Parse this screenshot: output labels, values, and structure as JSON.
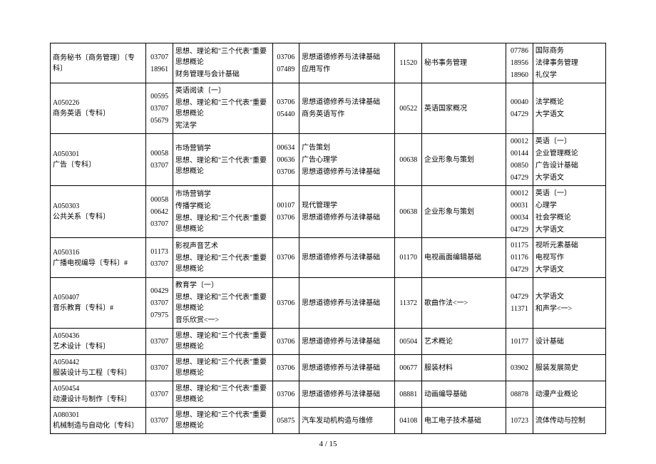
{
  "pagenum": "4 / 15",
  "rows": [
    {
      "c1": "商务秘书〔商务管理〕〔专科〕",
      "c2": [
        "03707",
        "18961"
      ],
      "c3": [
        "思想、理论和\"三个代表\"重要思想概论",
        "财务管理与会计基础"
      ],
      "c4": [
        "03706",
        "07489"
      ],
      "c5": [
        "思想道德修养与法律基础",
        "应用写作"
      ],
      "c6": [
        "11520"
      ],
      "c7": [
        "秘书事务管理"
      ],
      "c8": [
        "07786",
        "18956",
        "18960"
      ],
      "c9": [
        "国际商务",
        "法律事务管理",
        "礼仪学"
      ]
    },
    {
      "c1": "A050226\n商务英语〔专科〕",
      "c2": [
        "00595",
        "03707",
        "05679"
      ],
      "c3": [
        "英语阅读〔一〕",
        "思想、理论和\"三个代表\"重要思想概论",
        "宪法学"
      ],
      "c4": [
        "03706",
        "05440"
      ],
      "c5": [
        "思想道德修养与法律基础",
        "商务英语写作"
      ],
      "c6": [
        "00522"
      ],
      "c7": [
        "英语国家概况"
      ],
      "c8": [
        "00040",
        "04729"
      ],
      "c9": [
        "法学概论",
        "大学语文"
      ]
    },
    {
      "c1": "A050301\n广告〔专科〕",
      "c2": [
        "00058",
        "03707"
      ],
      "c3": [
        "市场营销学",
        "思想、理论和\"三个代表\"重要思想概论"
      ],
      "c4": [
        "00634",
        "00636",
        "03706"
      ],
      "c5": [
        "广告策划",
        "广告心理学",
        "思想道德修养与法律基础"
      ],
      "c6": [
        "00638"
      ],
      "c7": [
        "企业形象与策划"
      ],
      "c8": [
        "00012",
        "00144",
        "00850",
        "04729"
      ],
      "c9": [
        "英语〔一〕",
        "企业管理概论",
        "广告设计基础",
        "大学语文"
      ]
    },
    {
      "c1": "A050303\n公共关系〔专科〕",
      "c2": [
        "00058",
        "00642",
        "03707"
      ],
      "c3": [
        "市场营销学",
        "传播学概论",
        "思想、理论和\"三个代表\"重要思想概论"
      ],
      "c4": [
        "00107",
        "03706"
      ],
      "c5": [
        "现代管理学",
        "思想道德修养与法律基础"
      ],
      "c6": [
        "00638"
      ],
      "c7": [
        "企业形象与策划"
      ],
      "c8": [
        "00012",
        "00031",
        "00034",
        "04729"
      ],
      "c9": [
        "英语〔一〕",
        "心理学",
        "社会学概论",
        "大学语文"
      ]
    },
    {
      "c1": "A050316\n广播电视编导〔专科〕#",
      "c2": [
        "01173",
        "03707"
      ],
      "c3": [
        "影视声音艺术",
        "思想、理论和\"三个代表\"重要思想概论"
      ],
      "c4": [
        "03706"
      ],
      "c5": [
        "思想道德修养与法律基础"
      ],
      "c6": [
        "01170"
      ],
      "c7": [
        "电视画面编辑基础"
      ],
      "c8": [
        "01175",
        "01176",
        "04729"
      ],
      "c9": [
        "视听元素基础",
        "电视写作",
        "大学语文"
      ]
    },
    {
      "c1": "A050407\n音乐教育〔专科〕#",
      "c2": [
        "00429",
        "03707",
        "07975"
      ],
      "c3": [
        "教育学〔一〕",
        "思想、理论和\"三个代表\"重要思想概论",
        "音乐欣赏<一>"
      ],
      "c4": [
        "03706"
      ],
      "c5": [
        "思想道德修养与法律基础"
      ],
      "c6": [
        "11372"
      ],
      "c7": [
        "歌曲作法<一>"
      ],
      "c8": [
        "04729",
        "11371"
      ],
      "c9": [
        "大学语文",
        "和声学<一>"
      ]
    },
    {
      "c1": "A050436\n艺术设计〔专科〕",
      "c2": [
        "03707"
      ],
      "c3": [
        "思想、理论和\"三个代表\"重要思想概论"
      ],
      "c4": [
        "03706"
      ],
      "c5": [
        "思想道德修养与法律基础"
      ],
      "c6": [
        "00504"
      ],
      "c7": [
        "艺术概论"
      ],
      "c8": [
        "10177"
      ],
      "c9": [
        "设计基础"
      ]
    },
    {
      "c1": "A050442\n服装设计与工程〔专科〕",
      "c2": [
        "03707"
      ],
      "c3": [
        "思想、理论和\"三个代表\"重要思想概论"
      ],
      "c4": [
        "03706"
      ],
      "c5": [
        "思想道德修养与法律基础"
      ],
      "c6": [
        "00677"
      ],
      "c7": [
        "服装材料"
      ],
      "c8": [
        "03902"
      ],
      "c9": [
        "服装发展简史"
      ]
    },
    {
      "c1": "A050454\n动漫设计与制作〔专科〕",
      "c2": [
        "03707"
      ],
      "c3": [
        "思想、理论和\"三个代表\"重要思想概论"
      ],
      "c4": [
        "03706"
      ],
      "c5": [
        "思想道德修养与法律基础"
      ],
      "c6": [
        "08881"
      ],
      "c7": [
        "动画编导基础"
      ],
      "c8": [
        "08878"
      ],
      "c9": [
        "动漫产业概论"
      ]
    },
    {
      "c1": "A080301\n机械制造与自动化〔专科〕",
      "c2": [
        "03707"
      ],
      "c3": [
        "思想、理论和\"三个代表\"重要思想概论"
      ],
      "c4": [
        "05875"
      ],
      "c5": [
        "汽车发动机构造与维修"
      ],
      "c6": [
        "04108"
      ],
      "c7": [
        "电工电子技术基础"
      ],
      "c8": [
        "10723"
      ],
      "c9": [
        "流体传动与控制"
      ]
    }
  ]
}
